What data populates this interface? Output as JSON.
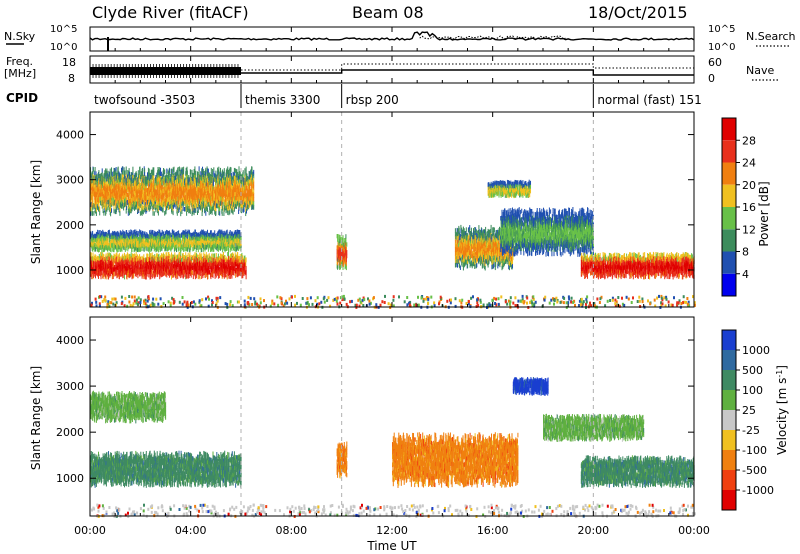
{
  "header": {
    "station": "Clyde River (fitACF)",
    "beam": "Beam 08",
    "date": "18/Oct/2015"
  },
  "nsky_panel": {
    "left_label": "N.Sky",
    "right_label": "N.Search",
    "left_ticks": [
      "10^5",
      "10^0"
    ],
    "right_ticks": [
      "10^5",
      "10^0"
    ]
  },
  "freq_panel": {
    "left_label": "Freq.",
    "left_unit": "[MHz]",
    "right_label": "Nave",
    "left_ticks": [
      "18",
      "8"
    ],
    "right_ticks": [
      "60",
      "0"
    ]
  },
  "cpid": {
    "label": "CPID",
    "segments": [
      {
        "name": "twofsound -3503",
        "start": 0,
        "end": 6
      },
      {
        "name": "themis 3300",
        "start": 6,
        "end": 10
      },
      {
        "name": "rbsp 200",
        "start": 10,
        "end": 20
      },
      {
        "name": "normal (fast) 151",
        "start": 20,
        "end": 24
      }
    ]
  },
  "x_axis": {
    "label": "Time UT",
    "ticks": [
      "00:00",
      "04:00",
      "08:00",
      "12:00",
      "16:00",
      "20:00",
      "00:00"
    ],
    "tick_hours": [
      0,
      4,
      8,
      12,
      16,
      20,
      24
    ]
  },
  "power_panel": {
    "ylabel": "Slant Range [km]",
    "yticks": [
      "1000",
      "2000",
      "3000",
      "4000"
    ],
    "colorbar_label": "Power [dB]",
    "colorbar_ticks": [
      "4",
      "8",
      "12",
      "16",
      "20",
      "24",
      "28"
    ],
    "colors": [
      "#0000ee",
      "#2050b0",
      "#3c8c5c",
      "#68c048",
      "#f0c020",
      "#f07f10",
      "#e8301c",
      "#e00000"
    ]
  },
  "velocity_panel": {
    "ylabel": "Slant Range [km]",
    "yticks": [
      "1000",
      "2000",
      "3000",
      "4000"
    ],
    "colorbar_label": "Velocity [m s^-1]",
    "colorbar_ticks": [
      "1000",
      "500",
      "100",
      "25",
      "-25",
      "-100",
      "-500",
      "-1000"
    ],
    "colors": [
      "#1a3fd0",
      "#2f6aa0",
      "#3f8a63",
      "#5fb040",
      "#c8c8c8",
      "#f0c020",
      "#f08010",
      "#f04010",
      "#e00000"
    ]
  },
  "chart_data": {
    "type": "heatmap",
    "x_range_hours": [
      0,
      24
    ],
    "y_range_km": [
      180,
      4500
    ],
    "gridlines": "cpid boundaries dashed",
    "power_bands": [
      {
        "t0": 0,
        "t1": 6.2,
        "range_km": [
          800,
          1400
        ],
        "power_db": 28
      },
      {
        "t0": 0,
        "t1": 6,
        "range_km": [
          1400,
          1900
        ],
        "power_db": 16
      },
      {
        "t0": 0,
        "t1": 6.5,
        "range_km": [
          2200,
          3300
        ],
        "power_db": 20
      },
      {
        "t0": 9.8,
        "t1": 10.2,
        "range_km": [
          1000,
          1800
        ],
        "power_db": 24
      },
      {
        "t0": 14.5,
        "t1": 16.8,
        "range_km": [
          1000,
          2000
        ],
        "power_db": 20
      },
      {
        "t0": 15.8,
        "t1": 17.5,
        "range_km": [
          2600,
          3000
        ],
        "power_db": 16
      },
      {
        "t0": 16.3,
        "t1": 20,
        "range_km": [
          1300,
          2400
        ],
        "power_db": 12
      },
      {
        "t0": 19.5,
        "t1": 24,
        "range_km": [
          800,
          1400
        ],
        "power_db": 28
      }
    ],
    "velocity_bands": [
      {
        "t0": 0,
        "t1": 6,
        "range_km": [
          800,
          1600
        ],
        "velocity": 100
      },
      {
        "t0": 0,
        "t1": 3,
        "range_km": [
          2200,
          2900
        ],
        "velocity": 25
      },
      {
        "t0": 9.8,
        "t1": 10.2,
        "range_km": [
          1000,
          1800
        ],
        "velocity": -500
      },
      {
        "t0": 12,
        "t1": 17,
        "range_km": [
          800,
          2000
        ],
        "velocity": -500
      },
      {
        "t0": 16.8,
        "t1": 18.2,
        "range_km": [
          2800,
          3200
        ],
        "velocity": 1000
      },
      {
        "t0": 18,
        "t1": 22,
        "range_km": [
          1800,
          2400
        ],
        "velocity": 25
      },
      {
        "t0": 19.5,
        "t1": 24,
        "range_km": [
          800,
          1500
        ],
        "velocity": 100
      }
    ]
  }
}
